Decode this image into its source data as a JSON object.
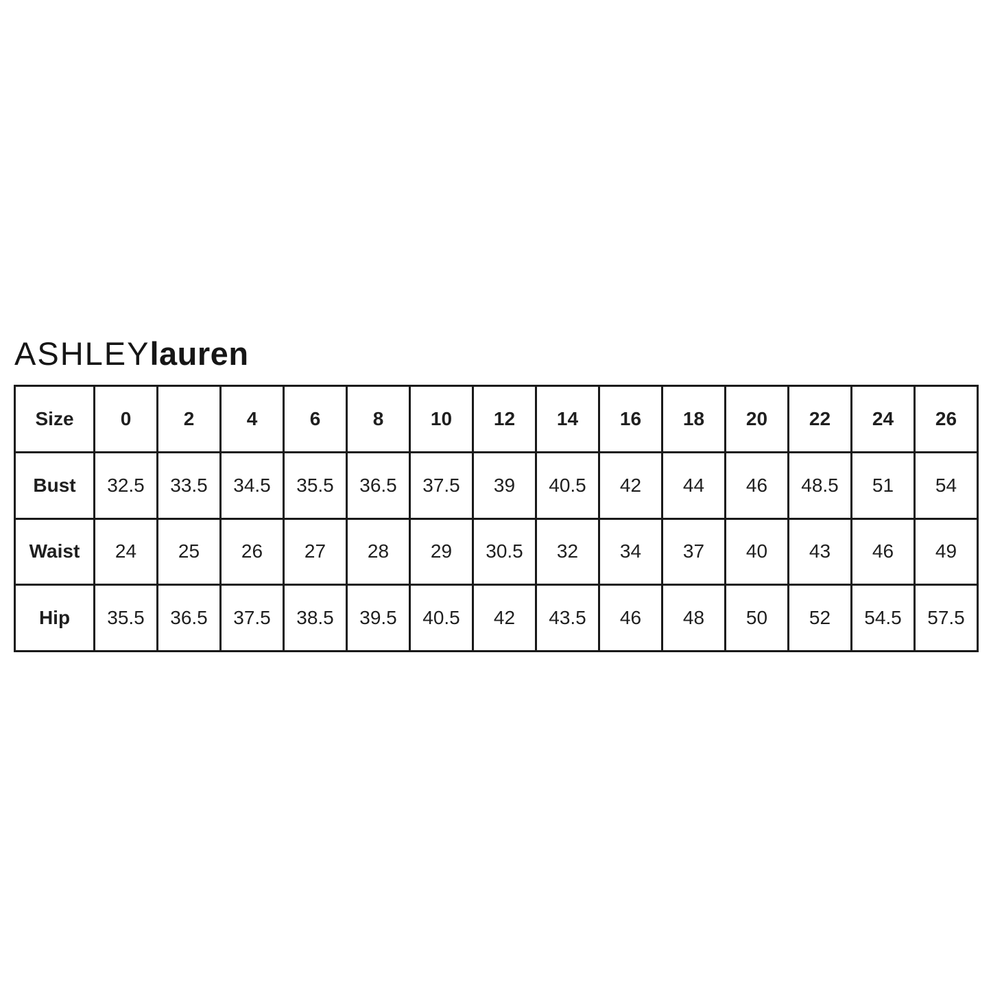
{
  "brand": {
    "name_upper": "ASHLEY",
    "name_lower": "lauren"
  },
  "colors": {
    "background": "#ffffff",
    "border": "#191919",
    "text": "#1f1f1f"
  },
  "table": {
    "header": {
      "label": "Size",
      "values": [
        "0",
        "2",
        "4",
        "6",
        "8",
        "10",
        "12",
        "14",
        "16",
        "18",
        "20",
        "22",
        "24",
        "26"
      ]
    },
    "rows": [
      {
        "label": "Bust",
        "values": [
          "32.5",
          "33.5",
          "34.5",
          "35.5",
          "36.5",
          "37.5",
          "39",
          "40.5",
          "42",
          "44",
          "46",
          "48.5",
          "51",
          "54"
        ]
      },
      {
        "label": "Waist",
        "values": [
          "24",
          "25",
          "26",
          "27",
          "28",
          "29",
          "30.5",
          "32",
          "34",
          "37",
          "40",
          "43",
          "46",
          "49"
        ]
      },
      {
        "label": "Hip",
        "values": [
          "35.5",
          "36.5",
          "37.5",
          "38.5",
          "39.5",
          "40.5",
          "42",
          "43.5",
          "46",
          "48",
          "50",
          "52",
          "54.5",
          "57.5"
        ]
      }
    ]
  }
}
